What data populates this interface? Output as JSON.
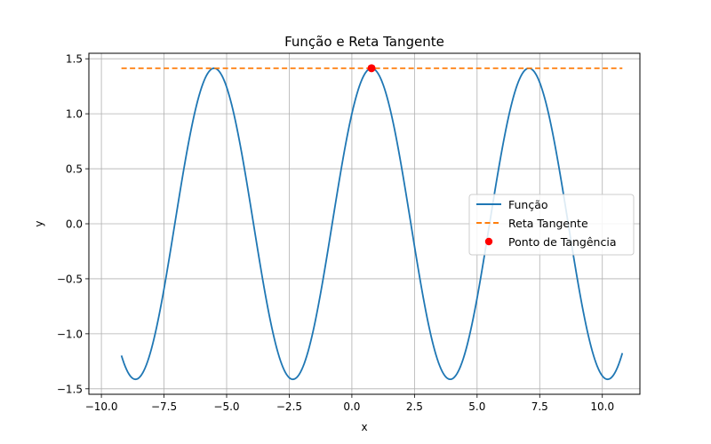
{
  "chart_data": {
    "type": "line",
    "title": "Função e Reta Tangente",
    "xlabel": "x",
    "ylabel": "y",
    "xlim": [
      -10.5,
      11.5
    ],
    "ylim": [
      -1.55,
      1.55
    ],
    "xticks": [
      -10.0,
      -7.5,
      -5.0,
      -2.5,
      0.0,
      2.5,
      5.0,
      7.5,
      10.0
    ],
    "xtick_labels": [
      "−10.0",
      "−7.5",
      "−5.0",
      "−2.5",
      "0.0",
      "2.5",
      "5.0",
      "7.5",
      "10.0"
    ],
    "yticks": [
      -1.5,
      -1.0,
      -0.5,
      0.0,
      0.5,
      1.0,
      1.5
    ],
    "ytick_labels": [
      "−1.5",
      "−1.0",
      "−0.5",
      "0.0",
      "0.5",
      "1.0",
      "1.5"
    ],
    "grid": true,
    "legend_position": "right",
    "series": [
      {
        "name": "Função",
        "kind": "line",
        "color": "#1f77b4",
        "x_range": [
          -9.2,
          10.8
        ],
        "function": "sin(x) + cos(x)",
        "samples": 400
      },
      {
        "name": "Reta Tangente",
        "kind": "dashed-line",
        "color": "#ff7f0e",
        "x": [
          -9.2,
          10.8
        ],
        "y": [
          1.414,
          1.414
        ]
      },
      {
        "name": "Ponto de Tangência",
        "kind": "point",
        "color": "#ff0000",
        "x": [
          0.785
        ],
        "y": [
          1.414
        ]
      }
    ]
  }
}
